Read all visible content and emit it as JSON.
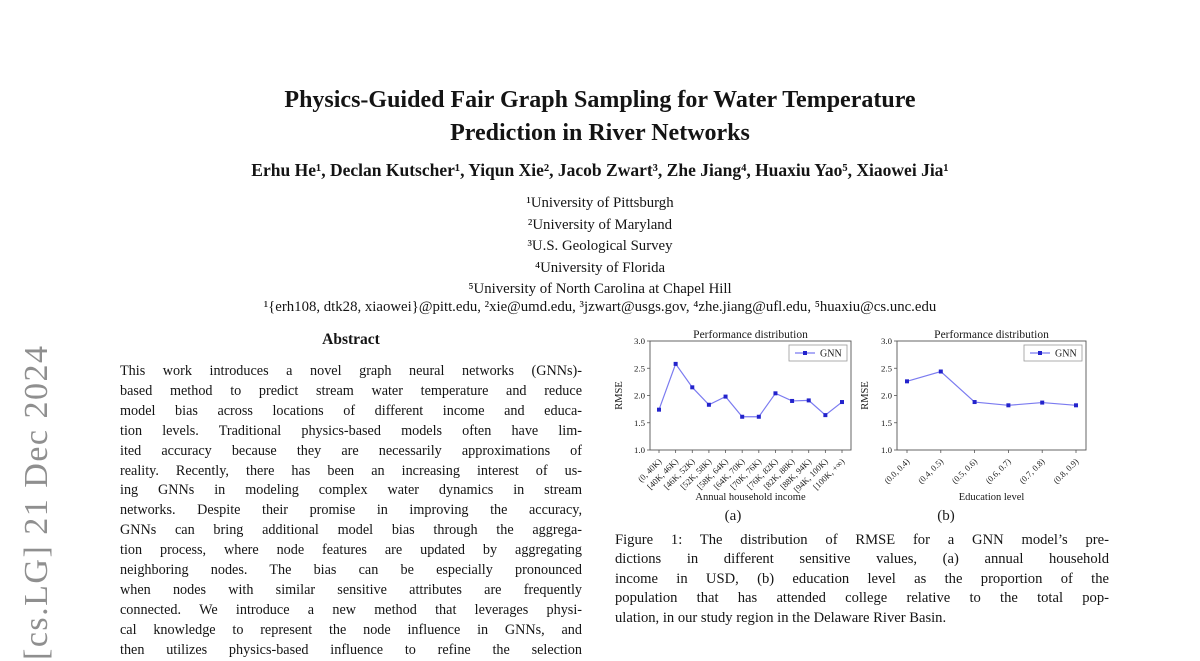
{
  "arxiv_watermark": "[cs.LG] 21 Dec 2024",
  "paper": {
    "title": [
      "Physics-Guided Fair Graph Sampling for Water Temperature",
      "Prediction in River Networks"
    ],
    "authors": "Erhu He¹, Declan Kutscher¹, Yiqun Xie², Jacob Zwart³, Zhe Jiang⁴, Huaxiu Yao⁵, Xiaowei Jia¹",
    "affiliations": [
      "¹University of Pittsburgh",
      "²University of Maryland",
      "³U.S. Geological Survey",
      "⁴University of Florida",
      "⁵University of North Carolina at Chapel Hill"
    ],
    "emails": "¹{erh108, dtk28, xiaowei}@pitt.edu, ²xie@umd.edu, ³jzwart@usgs.gov, ⁴zhe.jiang@ufl.edu, ⁵huaxiu@cs.unc.edu"
  },
  "abstract": {
    "heading": "Abstract",
    "lines": [
      "This work introduces a novel graph neural networks (GNNs)-",
      "based method to predict stream water temperature and reduce",
      "model bias across locations of different income and educa-",
      "tion levels. Traditional physics-based models often have lim-",
      "ited accuracy because they are necessarily approximations of",
      "reality. Recently, there has been an increasing interest of us-",
      "ing GNNs in modeling complex water dynamics in stream",
      "networks. Despite their promise in improving the accuracy,",
      "GNNs can bring additional model bias through the aggrega-",
      "tion process, where node features are updated by aggregating",
      "neighboring nodes. The bias can be especially pronounced",
      "when nodes with similar sensitive attributes are frequently",
      "connected. We introduce a new method that leverages physi-",
      "cal knowledge to represent the node influence in GNNs, and",
      "then utilizes physics-based influence to refine the selection"
    ]
  },
  "figure": {
    "caption_lines": [
      "Figure 1: The distribution of RMSE for a GNN model’s pre-",
      "dictions in different sensitive values, (a) annual household",
      "income in USD, (b) education level as the proportion of the",
      "population that has attended college relative to the total pop-",
      "ulation, in our study region in the Delaware River Basin."
    ]
  },
  "chart_data": [
    {
      "type": "line",
      "title": "Performance distribution",
      "ylabel": "RMSE",
      "xlabel": "Annual household income",
      "sublabel": "(a)",
      "ylim": [
        1.0,
        3.0
      ],
      "yticks": [
        "1.0",
        "1.5",
        "2.0",
        "2.5",
        "3.0"
      ],
      "grid": false,
      "legend_position": "upper right",
      "categories": [
        "(0, 40K)",
        "[40K, 46K)",
        "[46K, 52K)",
        "[52K, 58K)",
        "[58K, 64K)",
        "[64K, 70K)",
        "[70K, 76K)",
        "[76K, 82K)",
        "[82K, 88K)",
        "[88K, 94K)",
        "[94K, 100K)",
        "[100K, +∞)"
      ],
      "series": [
        {
          "name": "GNN",
          "values": [
            1.74,
            2.58,
            2.15,
            1.83,
            1.98,
            1.61,
            1.61,
            2.04,
            1.9,
            1.91,
            1.64,
            1.88
          ]
        }
      ]
    },
    {
      "type": "line",
      "title": "Performance distribution",
      "ylabel": "RMSE",
      "xlabel": "Education level",
      "sublabel": "(b)",
      "ylim": [
        1.0,
        3.0
      ],
      "yticks": [
        "1.0",
        "1.5",
        "2.0",
        "2.5",
        "3.0"
      ],
      "grid": false,
      "legend_position": "upper right",
      "categories": [
        "(0.0, 0.4)",
        "(0.4, 0.5)",
        "(0.5, 0.6)",
        "(0.6, 0.7)",
        "(0.7, 0.8)",
        "(0.8, 0.9)"
      ],
      "series": [
        {
          "name": "GNN",
          "values": [
            2.26,
            2.44,
            1.88,
            1.82,
            1.87,
            1.82
          ]
        }
      ]
    }
  ],
  "colors": {
    "line": "#7b7bf0",
    "marker": "#2323cc",
    "axis": "#555555",
    "watermark": "#8f8f8f"
  }
}
